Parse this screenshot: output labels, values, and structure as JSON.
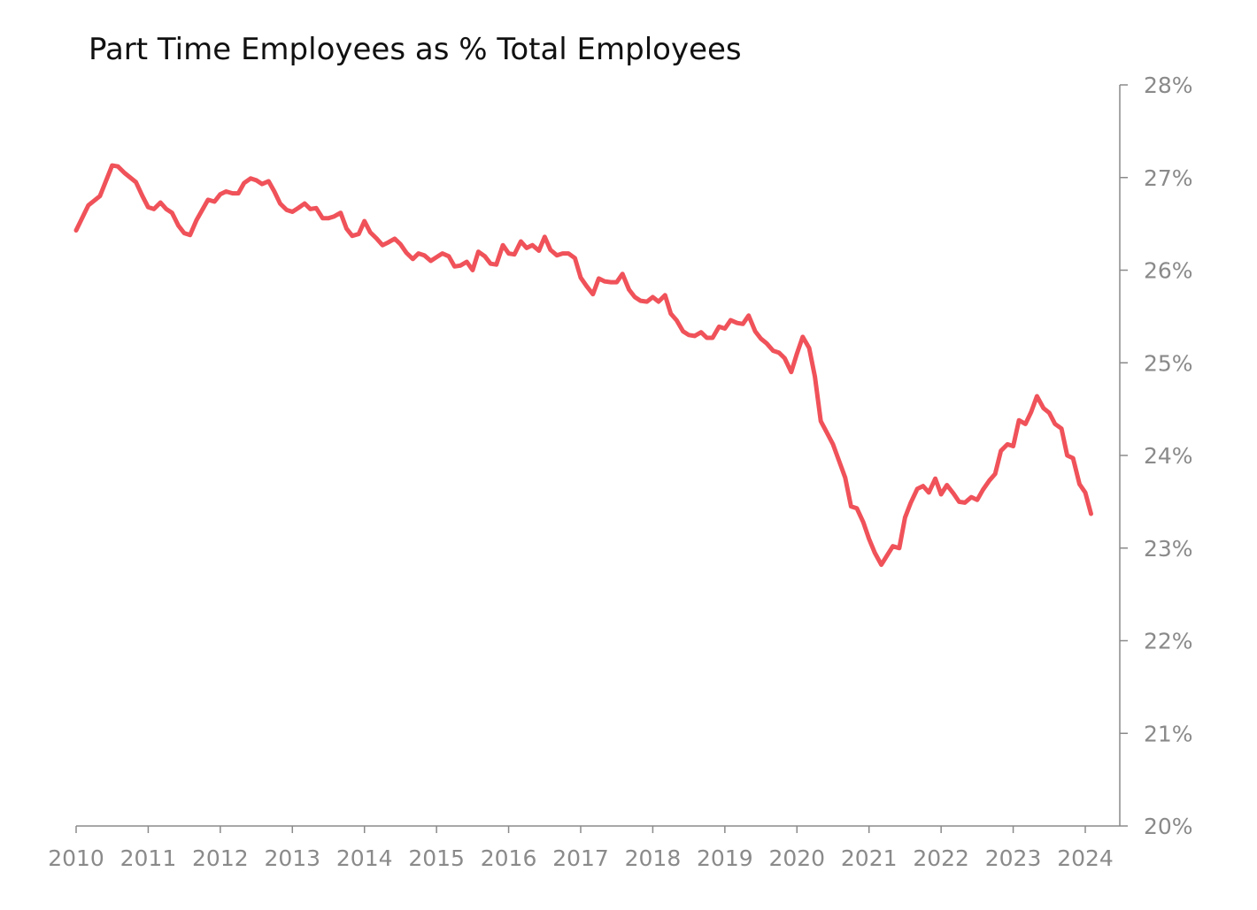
{
  "chart_data": {
    "type": "line",
    "title": "Part Time Employees as % Total Employees",
    "xlabel": "",
    "ylabel": "",
    "xlim": [
      2010,
      2024.5
    ],
    "ylim": [
      20,
      28
    ],
    "y_axis_position": "right",
    "grid": false,
    "x_ticks": [
      2010,
      2011,
      2012,
      2013,
      2014,
      2015,
      2016,
      2017,
      2018,
      2019,
      2020,
      2021,
      2022,
      2023,
      2024
    ],
    "x_tick_labels": [
      "2010",
      "2011",
      "2012",
      "2013",
      "2014",
      "2015",
      "2016",
      "2017",
      "2018",
      "2019",
      "2020",
      "2021",
      "2022",
      "2023",
      "2024"
    ],
    "y_ticks": [
      20,
      21,
      22,
      23,
      24,
      25,
      26,
      27,
      28
    ],
    "y_tick_labels": [
      "20%",
      "21%",
      "22%",
      "23%",
      "24%",
      "25%",
      "26%",
      "27%",
      "28%"
    ],
    "colors": {
      "line": "#f0525a",
      "axis": "#8a8a8a"
    },
    "series": [
      {
        "values": [
          [
            2010.0,
            26.43
          ],
          [
            2010.17,
            26.7
          ],
          [
            2010.33,
            26.8
          ],
          [
            2010.5,
            27.13
          ],
          [
            2010.58,
            27.12
          ],
          [
            2010.67,
            27.05
          ],
          [
            2010.83,
            26.95
          ],
          [
            2010.92,
            26.8
          ],
          [
            2011.0,
            26.68
          ],
          [
            2011.08,
            26.66
          ],
          [
            2011.17,
            26.73
          ],
          [
            2011.25,
            26.66
          ],
          [
            2011.33,
            26.62
          ],
          [
            2011.42,
            26.48
          ],
          [
            2011.5,
            26.4
          ],
          [
            2011.58,
            26.38
          ],
          [
            2011.67,
            26.54
          ],
          [
            2011.75,
            26.65
          ],
          [
            2011.83,
            26.76
          ],
          [
            2011.92,
            26.74
          ],
          [
            2012.0,
            26.82
          ],
          [
            2012.08,
            26.85
          ],
          [
            2012.17,
            26.83
          ],
          [
            2012.25,
            26.83
          ],
          [
            2012.33,
            26.94
          ],
          [
            2012.42,
            26.99
          ],
          [
            2012.5,
            26.97
          ],
          [
            2012.58,
            26.93
          ],
          [
            2012.67,
            26.96
          ],
          [
            2012.75,
            26.85
          ],
          [
            2012.83,
            26.72
          ],
          [
            2012.92,
            26.65
          ],
          [
            2013.0,
            26.63
          ],
          [
            2013.08,
            26.67
          ],
          [
            2013.17,
            26.72
          ],
          [
            2013.25,
            26.66
          ],
          [
            2013.33,
            26.67
          ],
          [
            2013.42,
            26.56
          ],
          [
            2013.5,
            26.56
          ],
          [
            2013.58,
            26.58
          ],
          [
            2013.67,
            26.62
          ],
          [
            2013.75,
            26.45
          ],
          [
            2013.83,
            26.37
          ],
          [
            2013.92,
            26.39
          ],
          [
            2014.0,
            26.53
          ],
          [
            2014.08,
            26.41
          ],
          [
            2014.17,
            26.34
          ],
          [
            2014.25,
            26.27
          ],
          [
            2014.33,
            26.3
          ],
          [
            2014.42,
            26.34
          ],
          [
            2014.5,
            26.28
          ],
          [
            2014.58,
            26.19
          ],
          [
            2014.67,
            26.12
          ],
          [
            2014.75,
            26.18
          ],
          [
            2014.83,
            26.16
          ],
          [
            2014.92,
            26.1
          ],
          [
            2015.0,
            26.14
          ],
          [
            2015.08,
            26.18
          ],
          [
            2015.17,
            26.15
          ],
          [
            2015.25,
            26.04
          ],
          [
            2015.33,
            26.05
          ],
          [
            2015.42,
            26.09
          ],
          [
            2015.5,
            26.0
          ],
          [
            2015.58,
            26.2
          ],
          [
            2015.67,
            26.15
          ],
          [
            2015.75,
            26.07
          ],
          [
            2015.83,
            26.06
          ],
          [
            2015.92,
            26.27
          ],
          [
            2016.0,
            26.18
          ],
          [
            2016.08,
            26.17
          ],
          [
            2016.17,
            26.31
          ],
          [
            2016.25,
            26.24
          ],
          [
            2016.33,
            26.27
          ],
          [
            2016.42,
            26.21
          ],
          [
            2016.5,
            26.36
          ],
          [
            2016.58,
            26.22
          ],
          [
            2016.67,
            26.16
          ],
          [
            2016.75,
            26.18
          ],
          [
            2016.83,
            26.18
          ],
          [
            2016.92,
            26.13
          ],
          [
            2017.0,
            25.92
          ],
          [
            2017.08,
            25.83
          ],
          [
            2017.17,
            25.74
          ],
          [
            2017.25,
            25.91
          ],
          [
            2017.33,
            25.88
          ],
          [
            2017.42,
            25.87
          ],
          [
            2017.5,
            25.87
          ],
          [
            2017.58,
            25.96
          ],
          [
            2017.67,
            25.79
          ],
          [
            2017.75,
            25.71
          ],
          [
            2017.83,
            25.67
          ],
          [
            2017.92,
            25.66
          ],
          [
            2018.0,
            25.71
          ],
          [
            2018.08,
            25.66
          ],
          [
            2018.17,
            25.73
          ],
          [
            2018.25,
            25.53
          ],
          [
            2018.33,
            25.46
          ],
          [
            2018.42,
            25.34
          ],
          [
            2018.5,
            25.3
          ],
          [
            2018.58,
            25.29
          ],
          [
            2018.67,
            25.33
          ],
          [
            2018.75,
            25.27
          ],
          [
            2018.83,
            25.27
          ],
          [
            2018.92,
            25.39
          ],
          [
            2019.0,
            25.37
          ],
          [
            2019.08,
            25.46
          ],
          [
            2019.17,
            25.43
          ],
          [
            2019.25,
            25.42
          ],
          [
            2019.33,
            25.51
          ],
          [
            2019.42,
            25.34
          ],
          [
            2019.5,
            25.26
          ],
          [
            2019.58,
            25.21
          ],
          [
            2019.67,
            25.13
          ],
          [
            2019.75,
            25.11
          ],
          [
            2019.83,
            25.05
          ],
          [
            2019.92,
            24.9
          ],
          [
            2020.0,
            25.1
          ],
          [
            2020.08,
            25.28
          ],
          [
            2020.17,
            25.16
          ],
          [
            2020.25,
            24.85
          ],
          [
            2020.33,
            24.37
          ],
          [
            2020.42,
            24.24
          ],
          [
            2020.5,
            24.12
          ],
          [
            2020.58,
            23.95
          ],
          [
            2020.67,
            23.76
          ],
          [
            2020.75,
            23.45
          ],
          [
            2020.83,
            23.43
          ],
          [
            2020.92,
            23.28
          ],
          [
            2021.0,
            23.1
          ],
          [
            2021.08,
            22.95
          ],
          [
            2021.17,
            22.82
          ],
          [
            2021.25,
            22.92
          ],
          [
            2021.33,
            23.02
          ],
          [
            2021.42,
            23.0
          ],
          [
            2021.5,
            23.33
          ],
          [
            2021.58,
            23.49
          ],
          [
            2021.67,
            23.64
          ],
          [
            2021.75,
            23.67
          ],
          [
            2021.83,
            23.6
          ],
          [
            2021.92,
            23.75
          ],
          [
            2022.0,
            23.58
          ],
          [
            2022.08,
            23.68
          ],
          [
            2022.17,
            23.59
          ],
          [
            2022.25,
            23.5
          ],
          [
            2022.33,
            23.49
          ],
          [
            2022.42,
            23.55
          ],
          [
            2022.5,
            23.52
          ],
          [
            2022.58,
            23.63
          ],
          [
            2022.67,
            23.73
          ],
          [
            2022.75,
            23.8
          ],
          [
            2022.83,
            24.05
          ],
          [
            2022.92,
            24.12
          ],
          [
            2023.0,
            24.1
          ],
          [
            2023.08,
            24.38
          ],
          [
            2023.17,
            24.34
          ],
          [
            2023.25,
            24.47
          ],
          [
            2023.33,
            24.64
          ],
          [
            2023.42,
            24.51
          ],
          [
            2023.5,
            24.46
          ],
          [
            2023.58,
            24.34
          ],
          [
            2023.67,
            24.29
          ],
          [
            2023.75,
            24.0
          ],
          [
            2023.83,
            23.97
          ],
          [
            2023.92,
            23.69
          ],
          [
            2024.0,
            23.6
          ],
          [
            2024.08,
            23.37
          ]
        ]
      }
    ]
  }
}
